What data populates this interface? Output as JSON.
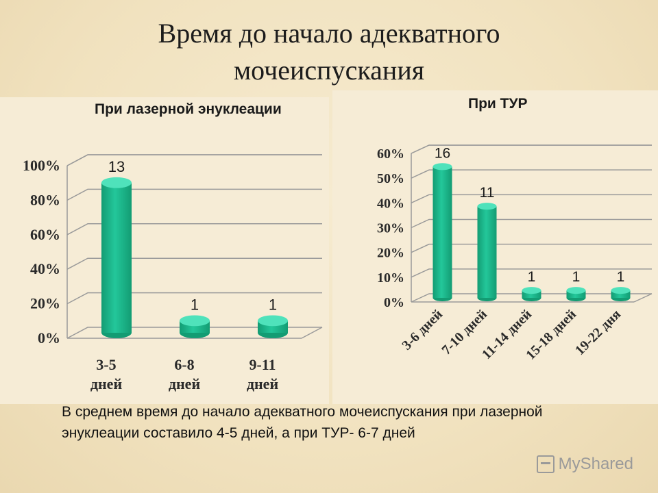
{
  "slide": {
    "title": "Время до начало адекватного мочеиспускания",
    "summary": "В среднем время до начало адекватного мочеиспускания при лазерной энуклеации составило 4-5 дней, а при ТУР- 6-7 дней",
    "watermark": "MyShared"
  },
  "colors": {
    "bar": "#23c79a",
    "bar_dark": "#139c73",
    "bar_top": "#4fe2bb",
    "grid": "#9a9a9a"
  },
  "chart_data": [
    {
      "type": "bar",
      "title": "При лазерной энуклеации",
      "categories": [
        "3-5 дней",
        "6-8 дней",
        "9-11 дней"
      ],
      "values": [
        87,
        7,
        7
      ],
      "data_labels": [
        "13",
        "1",
        "1"
      ],
      "yticks": [
        "0%",
        "20%",
        "40%",
        "60%",
        "80%",
        "100%"
      ],
      "ylim": [
        0,
        100
      ],
      "grid": true
    },
    {
      "type": "bar",
      "title": "При ТУР",
      "categories": [
        "3-6 дней",
        "7-10 дней",
        "11-14 дней",
        "15-18 дней",
        "19-22 дня"
      ],
      "values": [
        53,
        37,
        3,
        3,
        3
      ],
      "data_labels": [
        "16",
        "11",
        "1",
        "1",
        "1"
      ],
      "yticks": [
        "0%",
        "10%",
        "20%",
        "30%",
        "40%",
        "50%",
        "60%"
      ],
      "ylim": [
        0,
        60
      ],
      "grid": true
    }
  ]
}
